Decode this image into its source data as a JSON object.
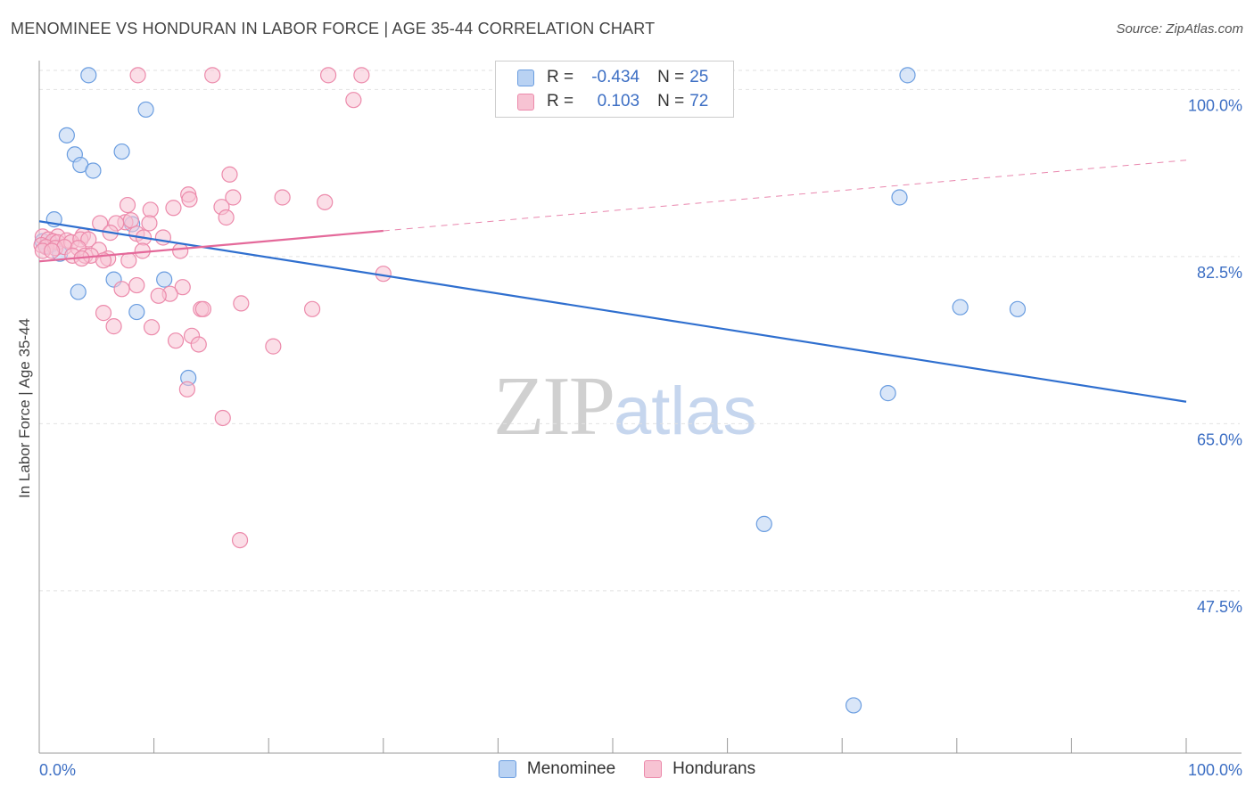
{
  "title": "MENOMINEE VS HONDURAN IN LABOR FORCE | AGE 35-44 CORRELATION CHART",
  "source": "Source: ZipAtlas.com",
  "watermark": {
    "zip": "ZIP",
    "atlas": "atlas"
  },
  "colors": {
    "menominee_fill": "#b9d2f3",
    "menominee_stroke": "#6a9de0",
    "menominee_line": "#2f6fcf",
    "hondurans_fill": "#f7c3d3",
    "hondurans_stroke": "#ec8aab",
    "hondurans_line": "#e4699a",
    "axis_label": "#3d6fc4",
    "grid": "#e2e2e2"
  },
  "stats": {
    "r_label": "R =",
    "n_label": "N =",
    "menominee": {
      "r": "-0.434",
      "n": "25"
    },
    "hondurans": {
      "r": "0.103",
      "n": "72"
    }
  },
  "legend": {
    "menominee": "Menominee",
    "hondurans": "Hondurans"
  },
  "chart_data": {
    "type": "scatter",
    "title": "MENOMINEE VS HONDURAN IN LABOR FORCE | AGE 35-44 CORRELATION CHART",
    "xlabel": "",
    "ylabel": "In Labor Force | Age 35-44",
    "xlim": [
      0,
      100
    ],
    "ylim": [
      30.5,
      102
    ],
    "x_tick_labels": [
      "0.0%",
      "100.0%"
    ],
    "y_ticks": [
      100.0,
      82.5,
      65.0,
      47.5
    ],
    "y_tick_labels": [
      "100.0%",
      "82.5%",
      "65.0%",
      "47.5%"
    ],
    "grid": true,
    "series": [
      {
        "name": "Menominee",
        "r": -0.434,
        "n": 25,
        "trend": {
          "x": [
            0,
            100
          ],
          "y": [
            86.2,
            67.3
          ],
          "dashed_from": null
        },
        "points": [
          {
            "x": 4.3,
            "y": 101.5
          },
          {
            "x": 75.7,
            "y": 101.5
          },
          {
            "x": 9.3,
            "y": 97.9
          },
          {
            "x": 2.4,
            "y": 95.2
          },
          {
            "x": 3.1,
            "y": 93.2
          },
          {
            "x": 7.2,
            "y": 93.5
          },
          {
            "x": 3.6,
            "y": 92.1
          },
          {
            "x": 4.7,
            "y": 91.5
          },
          {
            "x": 75.0,
            "y": 88.7
          },
          {
            "x": 1.3,
            "y": 86.4
          },
          {
            "x": 8.1,
            "y": 85.9
          },
          {
            "x": 0.3,
            "y": 84.1
          },
          {
            "x": 0.6,
            "y": 83.6
          },
          {
            "x": 1.1,
            "y": 83.8
          },
          {
            "x": 1.8,
            "y": 82.8
          },
          {
            "x": 6.5,
            "y": 80.1
          },
          {
            "x": 10.9,
            "y": 80.1
          },
          {
            "x": 3.4,
            "y": 78.8
          },
          {
            "x": 80.3,
            "y": 77.2
          },
          {
            "x": 85.3,
            "y": 77.0
          },
          {
            "x": 8.5,
            "y": 76.7
          },
          {
            "x": 13.0,
            "y": 69.8
          },
          {
            "x": 74.0,
            "y": 68.2
          },
          {
            "x": 63.2,
            "y": 54.5
          },
          {
            "x": 71.0,
            "y": 35.5
          }
        ]
      },
      {
        "name": "Hondurans",
        "r": 0.103,
        "n": 72,
        "trend": {
          "x": [
            0,
            30,
            100
          ],
          "y": [
            82.0,
            85.2,
            92.6
          ],
          "dashed_from": 30
        },
        "points": [
          {
            "x": 8.6,
            "y": 101.5
          },
          {
            "x": 15.1,
            "y": 101.5
          },
          {
            "x": 25.2,
            "y": 101.5
          },
          {
            "x": 28.1,
            "y": 101.5
          },
          {
            "x": 27.4,
            "y": 98.9
          },
          {
            "x": 16.6,
            "y": 91.1
          },
          {
            "x": 13.0,
            "y": 89.0
          },
          {
            "x": 13.1,
            "y": 88.5
          },
          {
            "x": 16.9,
            "y": 88.7
          },
          {
            "x": 21.2,
            "y": 88.7
          },
          {
            "x": 24.9,
            "y": 88.2
          },
          {
            "x": 7.7,
            "y": 87.9
          },
          {
            "x": 15.9,
            "y": 87.7
          },
          {
            "x": 9.7,
            "y": 87.4
          },
          {
            "x": 11.7,
            "y": 87.6
          },
          {
            "x": 16.3,
            "y": 86.6
          },
          {
            "x": 7.5,
            "y": 86.1
          },
          {
            "x": 8.0,
            "y": 86.3
          },
          {
            "x": 5.3,
            "y": 86.0
          },
          {
            "x": 6.7,
            "y": 86.0
          },
          {
            "x": 9.6,
            "y": 86.0
          },
          {
            "x": 6.2,
            "y": 85.0
          },
          {
            "x": 8.5,
            "y": 84.9
          },
          {
            "x": 0.3,
            "y": 84.6
          },
          {
            "x": 1.6,
            "y": 84.6
          },
          {
            "x": 3.8,
            "y": 84.7
          },
          {
            "x": 0.8,
            "y": 84.3
          },
          {
            "x": 1.2,
            "y": 84.1
          },
          {
            "x": 1.6,
            "y": 84.0
          },
          {
            "x": 2.4,
            "y": 84.2
          },
          {
            "x": 2.8,
            "y": 84.0
          },
          {
            "x": 3.6,
            "y": 84.3
          },
          {
            "x": 4.3,
            "y": 84.3
          },
          {
            "x": 10.8,
            "y": 84.5
          },
          {
            "x": 9.1,
            "y": 84.5
          },
          {
            "x": 0.2,
            "y": 83.7
          },
          {
            "x": 0.6,
            "y": 83.5
          },
          {
            "x": 1.4,
            "y": 83.4
          },
          {
            "x": 2.2,
            "y": 83.5
          },
          {
            "x": 3.4,
            "y": 83.4
          },
          {
            "x": 0.3,
            "y": 83.1
          },
          {
            "x": 1.1,
            "y": 83.1
          },
          {
            "x": 5.2,
            "y": 83.2
          },
          {
            "x": 9.0,
            "y": 83.1
          },
          {
            "x": 12.3,
            "y": 83.1
          },
          {
            "x": 2.9,
            "y": 82.6
          },
          {
            "x": 4.0,
            "y": 82.6
          },
          {
            "x": 4.5,
            "y": 82.6
          },
          {
            "x": 6.0,
            "y": 82.3
          },
          {
            "x": 3.7,
            "y": 82.3
          },
          {
            "x": 5.6,
            "y": 82.1
          },
          {
            "x": 7.8,
            "y": 82.1
          },
          {
            "x": 30.0,
            "y": 80.7
          },
          {
            "x": 7.2,
            "y": 79.1
          },
          {
            "x": 8.5,
            "y": 79.5
          },
          {
            "x": 12.5,
            "y": 79.3
          },
          {
            "x": 11.4,
            "y": 78.6
          },
          {
            "x": 10.4,
            "y": 78.4
          },
          {
            "x": 17.6,
            "y": 77.6
          },
          {
            "x": 14.1,
            "y": 77.0
          },
          {
            "x": 14.3,
            "y": 77.0
          },
          {
            "x": 23.8,
            "y": 77.0
          },
          {
            "x": 5.6,
            "y": 76.6
          },
          {
            "x": 6.5,
            "y": 75.2
          },
          {
            "x": 9.8,
            "y": 75.1
          },
          {
            "x": 13.3,
            "y": 74.2
          },
          {
            "x": 11.9,
            "y": 73.7
          },
          {
            "x": 13.9,
            "y": 73.3
          },
          {
            "x": 20.4,
            "y": 73.1
          },
          {
            "x": 12.9,
            "y": 68.6
          },
          {
            "x": 16.0,
            "y": 65.6
          },
          {
            "x": 17.5,
            "y": 52.8
          }
        ]
      }
    ]
  }
}
